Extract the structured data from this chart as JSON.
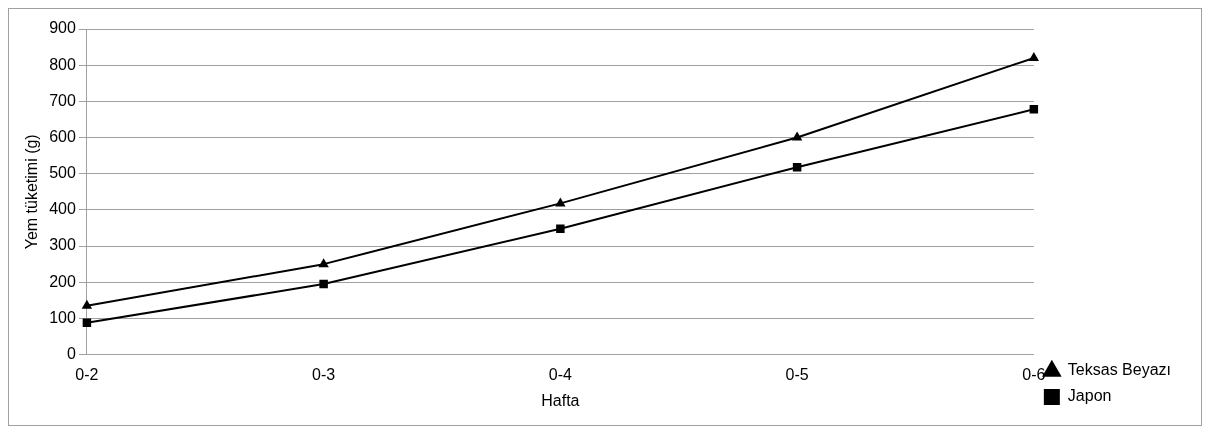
{
  "chart_data": {
    "type": "line",
    "xlabel": "Hafta",
    "ylabel": "Yem tüketimi (g)",
    "categories": [
      "0-2",
      "0-3",
      "0-4",
      "0-5",
      "0-6"
    ],
    "series": [
      {
        "name": "Teksas Beyazı",
        "color": "#000000",
        "marker": "triangle",
        "values": [
          135,
          250,
          418,
          600,
          820
        ]
      },
      {
        "name": "Japon",
        "color": "#000000",
        "marker": "square",
        "values": [
          88,
          195,
          348,
          518,
          678
        ]
      }
    ],
    "ylim": [
      0,
      900
    ],
    "yticks": [
      0,
      100,
      200,
      300,
      400,
      500,
      600,
      700,
      800,
      900
    ],
    "grid": "y",
    "legend": "right",
    "line_style": "solid"
  }
}
